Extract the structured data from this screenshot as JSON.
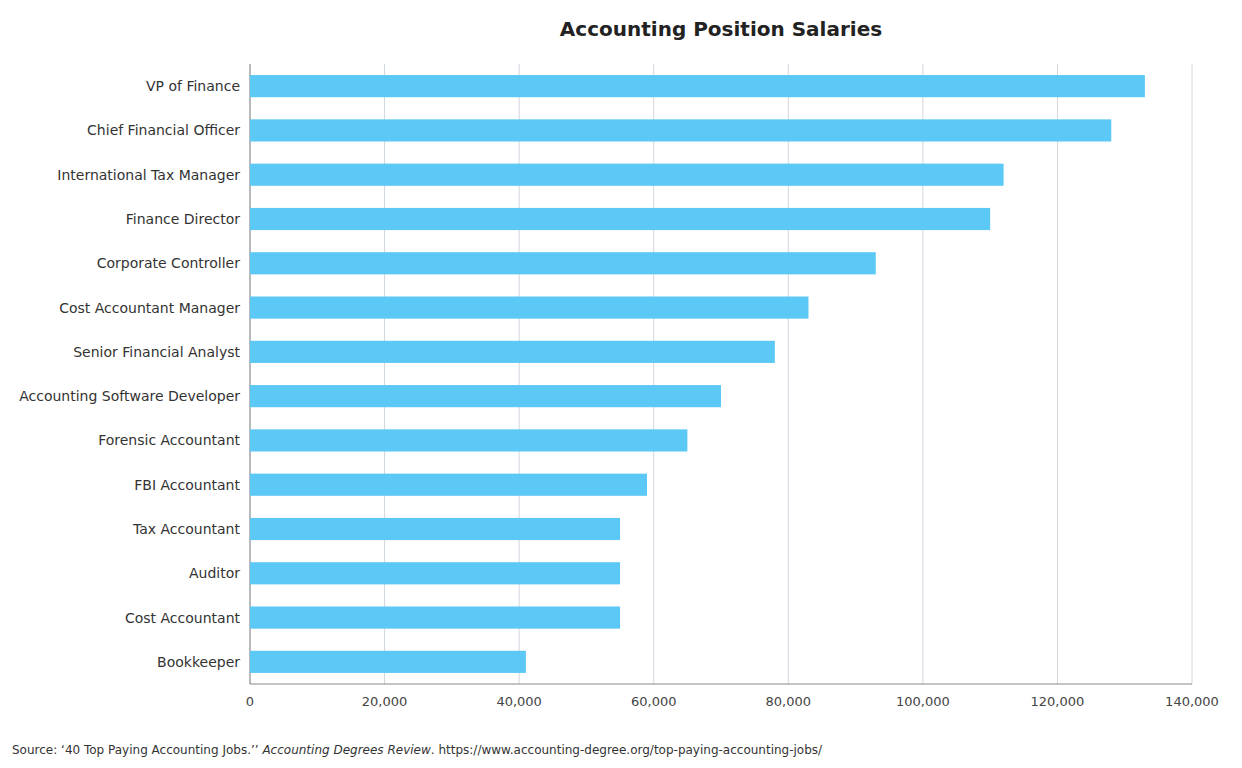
{
  "chart_data": {
    "type": "bar",
    "orientation": "horizontal",
    "title": "Accounting Position Salaries",
    "categories": [
      "VP of Finance",
      "Chief Financial Officer",
      "International Tax Manager",
      "Finance Director",
      "Corporate Controller",
      "Cost Accountant Manager",
      "Senior Financial Analyst",
      "Accounting Software Developer",
      "Forensic Accountant",
      "FBI Accountant",
      "Tax Accountant",
      "Auditor",
      "Cost Accountant",
      "Bookkeeper"
    ],
    "values": [
      133000,
      128000,
      112000,
      110000,
      93000,
      83000,
      78000,
      70000,
      65000,
      59000,
      55000,
      55000,
      55000,
      41000
    ],
    "color": "#5BC8F5",
    "xlim": [
      0,
      140000
    ],
    "xticks": [
      0,
      {
        "value": 20000,
        "label": "20,000"
      },
      {
        "value": 40000,
        "label": "40,000"
      },
      {
        "value": 60000,
        "label": "60,000"
      },
      {
        "value": 80000,
        "label": "80,000"
      },
      {
        "value": 100000,
        "label": "100,000"
      },
      {
        "value": 120000,
        "label": "120,000"
      },
      {
        "value": 140000,
        "label": "140,000"
      }
    ],
    "grid": true,
    "annotations": [
      "Source: ‘40 Top Paying Accounting Jobs.’’ ",
      "Accounting Degrees Review",
      ". https://www.accounting-degree.org/top-paying-accounting-jobs/"
    ]
  }
}
